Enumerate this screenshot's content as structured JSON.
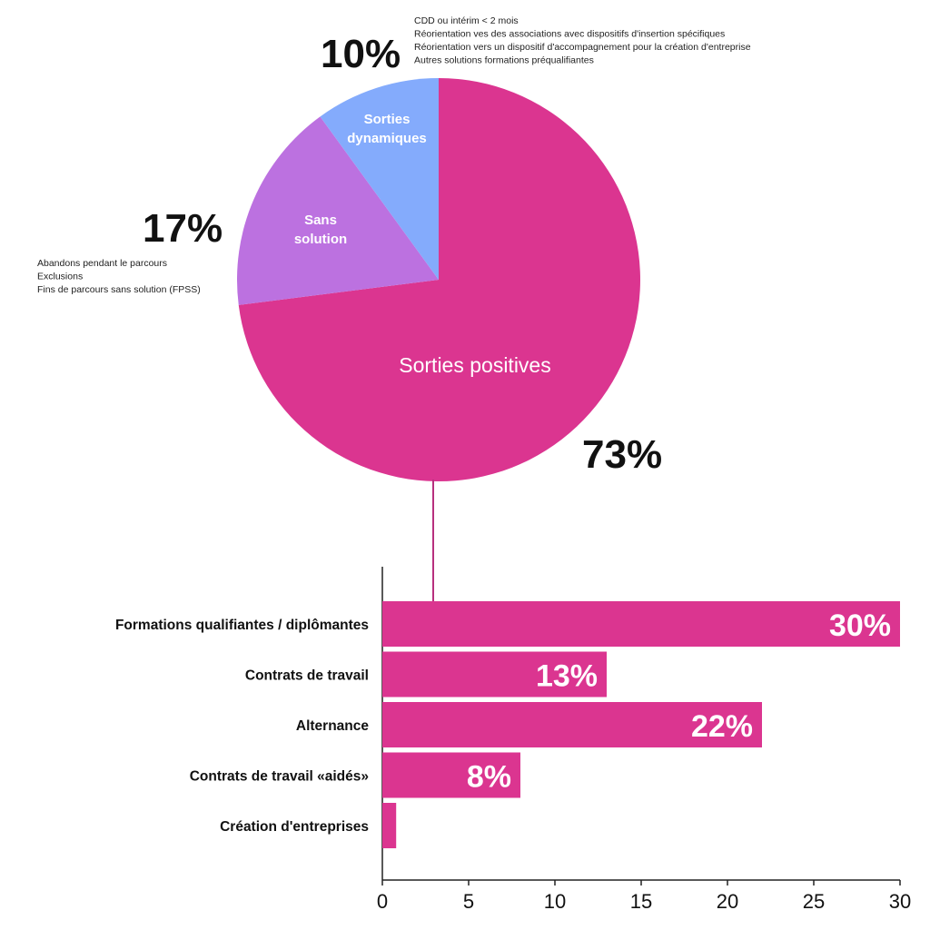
{
  "chart_data": [
    {
      "type": "pie",
      "slices": [
        {
          "label": "Sorties positives",
          "value": 73,
          "value_label": "73%",
          "color": "#DB3590",
          "notes": []
        },
        {
          "label_lines": [
            "Sans",
            "solution"
          ],
          "value": 17,
          "value_label": "17%",
          "color": "#BC71E0",
          "notes": [
            "Abandons pendant le parcours",
            "Exclusions",
            "Fins de parcours sans solution (FPSS)"
          ]
        },
        {
          "label_lines": [
            "Sorties",
            "dynamiques"
          ],
          "value": 10,
          "value_label": "10%",
          "color": "#84ABFC",
          "notes": [
            "CDD ou intérim < 2 mois",
            "Réorientation ves des associations avec dispositifs d'insertion spécifiques",
            "Réorientation vers un dispositif d'accompagnement pour la création d'entreprise",
            "Autres solutions formations préqualifiantes"
          ]
        }
      ]
    },
    {
      "type": "bar",
      "orientation": "horizontal",
      "color": "#DB3590",
      "categories": [
        "Formations qualifiantes / diplômantes",
        "Contrats de travail",
        "Alternance",
        "Contrats de travail «aidés»",
        "Création d'entreprises"
      ],
      "values": [
        30,
        13,
        22,
        8,
        0.8
      ],
      "value_labels": [
        "30%",
        "13%",
        "22%",
        "8%",
        ""
      ],
      "xlim": [
        0,
        30
      ],
      "xticks": [
        0,
        5,
        10,
        15,
        20,
        25,
        30
      ],
      "grid": false
    }
  ]
}
